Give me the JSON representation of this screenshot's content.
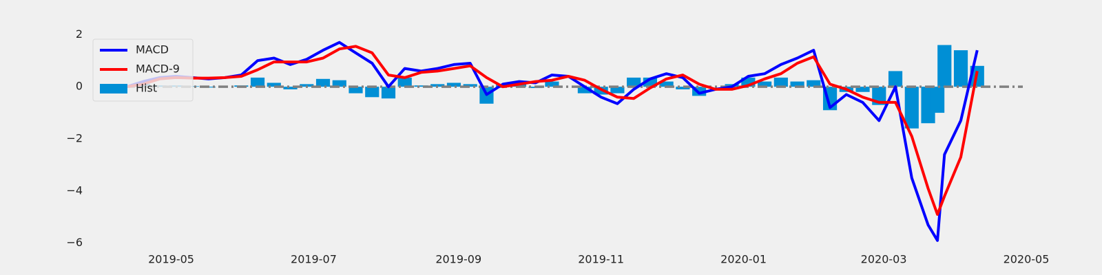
{
  "chart_data": {
    "type": "line",
    "x": [
      "2019-04-12",
      "2019-04-19",
      "2019-04-26",
      "2019-05-03",
      "2019-05-10",
      "2019-05-17",
      "2019-05-24",
      "2019-05-31",
      "2019-06-07",
      "2019-06-14",
      "2019-06-21",
      "2019-06-28",
      "2019-07-05",
      "2019-07-12",
      "2019-07-19",
      "2019-07-26",
      "2019-08-02",
      "2019-08-09",
      "2019-08-16",
      "2019-08-23",
      "2019-08-30",
      "2019-09-06",
      "2019-09-13",
      "2019-09-20",
      "2019-09-27",
      "2019-10-04",
      "2019-10-11",
      "2019-10-18",
      "2019-10-25",
      "2019-11-01",
      "2019-11-08",
      "2019-11-15",
      "2019-11-22",
      "2019-11-29",
      "2019-12-06",
      "2019-12-13",
      "2019-12-20",
      "2019-12-27",
      "2020-01-03",
      "2020-01-10",
      "2020-01-17",
      "2020-01-24",
      "2020-01-31",
      "2020-02-07",
      "2020-02-14",
      "2020-02-21",
      "2020-02-28",
      "2020-03-06",
      "2020-03-13",
      "2020-03-20",
      "2020-03-24",
      "2020-03-27",
      "2020-04-03",
      "2020-04-10"
    ],
    "series": [
      {
        "name": "MACD",
        "color": "#0000ff",
        "type": "line",
        "values": [
          0.0,
          0.2,
          0.35,
          0.4,
          0.35,
          0.3,
          0.35,
          0.45,
          1.0,
          1.1,
          0.85,
          1.05,
          1.4,
          1.7,
          1.3,
          0.9,
          0.0,
          0.7,
          0.6,
          0.7,
          0.85,
          0.9,
          -0.3,
          0.1,
          0.2,
          0.15,
          0.45,
          0.4,
          0.0,
          -0.4,
          -0.65,
          -0.1,
          0.3,
          0.5,
          0.35,
          -0.25,
          -0.1,
          0.0,
          0.4,
          0.5,
          0.85,
          1.1,
          1.4,
          -0.8,
          -0.3,
          -0.6,
          -1.3,
          0.0,
          -3.5,
          -5.3,
          -5.9,
          -2.6,
          -1.3,
          1.4
        ]
      },
      {
        "name": "MACD-9",
        "color": "#ff0000",
        "type": "line",
        "values": [
          0.0,
          0.1,
          0.3,
          0.35,
          0.33,
          0.33,
          0.35,
          0.4,
          0.65,
          0.95,
          0.95,
          0.95,
          1.1,
          1.45,
          1.55,
          1.3,
          0.45,
          0.35,
          0.55,
          0.6,
          0.7,
          0.8,
          0.35,
          0.0,
          0.1,
          0.2,
          0.25,
          0.4,
          0.25,
          -0.1,
          -0.4,
          -0.45,
          -0.05,
          0.3,
          0.45,
          0.1,
          -0.1,
          -0.1,
          0.05,
          0.3,
          0.5,
          0.9,
          1.15,
          0.1,
          -0.1,
          -0.4,
          -0.6,
          -0.6,
          -1.9,
          -3.9,
          -4.9,
          -4.2,
          -2.7,
          0.6
        ]
      },
      {
        "name": "Hist",
        "color": "#008fd5",
        "type": "bar",
        "values": [
          0.0,
          0.1,
          0.05,
          0.05,
          0.02,
          -0.03,
          0.0,
          0.05,
          0.35,
          0.15,
          -0.1,
          0.1,
          0.3,
          0.25,
          -0.25,
          -0.4,
          -0.45,
          0.35,
          0.05,
          0.1,
          0.15,
          0.1,
          -0.65,
          0.1,
          0.1,
          -0.05,
          0.2,
          0.0,
          -0.25,
          -0.3,
          -0.25,
          0.35,
          0.35,
          0.2,
          -0.1,
          -0.35,
          0.0,
          0.1,
          0.35,
          0.2,
          0.35,
          0.2,
          0.25,
          -0.9,
          -0.2,
          -0.2,
          -0.7,
          0.6,
          -1.6,
          -1.4,
          -1.0,
          1.6,
          1.4,
          0.8
        ]
      }
    ],
    "xlim": [
      "2019-03-30",
      "2020-05-01"
    ],
    "xticks": [
      {
        "value": "2019-05-01",
        "label": "2019-05"
      },
      {
        "value": "2019-07-01",
        "label": "2019-07"
      },
      {
        "value": "2019-09-01",
        "label": "2019-09"
      },
      {
        "value": "2019-11-01",
        "label": "2019-11"
      },
      {
        "value": "2020-01-01",
        "label": "2020-01"
      },
      {
        "value": "2020-03-01",
        "label": "2020-03"
      },
      {
        "value": "2020-05-01",
        "label": "2020-05"
      }
    ],
    "ylim": [
      -6.3,
      2.8
    ],
    "yticks": [
      {
        "value": 2,
        "label": "2"
      },
      {
        "value": 0,
        "label": "0"
      },
      {
        "value": -2,
        "label": "−2"
      },
      {
        "value": -4,
        "label": "−4"
      },
      {
        "value": -6,
        "label": "−6"
      }
    ],
    "hline": {
      "y": 0,
      "color": "#808080"
    },
    "legend": "upper left"
  }
}
